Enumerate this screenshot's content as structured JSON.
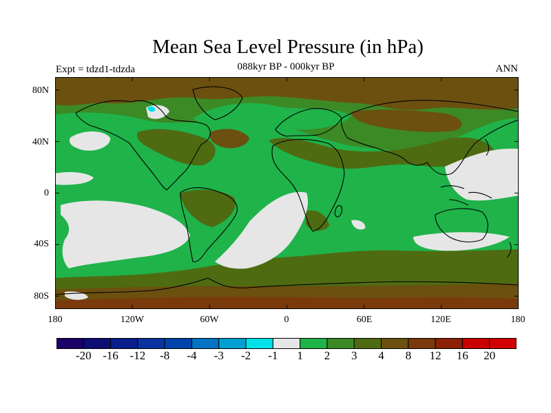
{
  "title": "Mean Sea Level Pressure (in hPa)",
  "subtitle": "088kyr BP - 000kyr BP",
  "experiment_label": "Expt = tdzd1-tdzda",
  "season_label": "ANN",
  "map": {
    "projection": "cylindrical-equidistant",
    "lon_range": [
      -180,
      180
    ],
    "lat_range": [
      -90,
      90
    ],
    "lat_tick_labels": [
      "80N",
      "40N",
      "0",
      "40S",
      "80S"
    ],
    "lon_tick_labels": [
      "180",
      "120W",
      "60W",
      "0",
      "60E",
      "120E",
      "180"
    ]
  },
  "colorbar": {
    "labels": [
      "-20",
      "-16",
      "-12",
      "-8",
      "-4",
      "-3",
      "-2",
      "-1",
      "1",
      "2",
      "3",
      "4",
      "8",
      "12",
      "16",
      "20"
    ],
    "colors": [
      "#1a0066",
      "#0d0d73",
      "#0a1e8c",
      "#0a33a0",
      "#0044aa",
      "#0073c4",
      "#00a0d0",
      "#00e0e8",
      "#e6e6e6",
      "#1fb34a",
      "#3c8a26",
      "#4f6b12",
      "#6b5010",
      "#7a3a0c",
      "#8c2006",
      "#c80000",
      "#d20000"
    ]
  },
  "colors": {
    "neutral": "#e6e6e6",
    "c1_2": "#1fb34a",
    "c2_3": "#3c8a26",
    "c3_4": "#4f6b12",
    "c4_8": "#6b5010",
    "neg1_0": "#00e0e8"
  }
}
